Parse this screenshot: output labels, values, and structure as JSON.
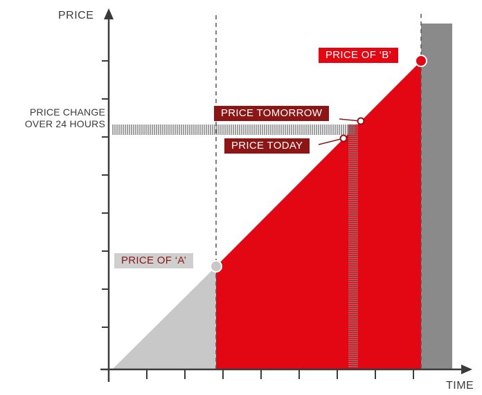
{
  "axes": {
    "y_label": "PRICE",
    "x_label": "TIME"
  },
  "side_label": {
    "line1": "PRICE CHANGE",
    "line2": "OVER 24 HOURS"
  },
  "tags": {
    "price_a": "PRICE OF ‘A’",
    "price_b": "PRICE OF ‘B’",
    "price_tomorrow": "PRICE TOMORROW",
    "price_today": "PRICE TODAY"
  },
  "colors": {
    "red": "#e30613",
    "dark_red": "#8c1515",
    "light_grey": "#c8c8c8",
    "dark_grey": "#8a8a8a",
    "axis": "#3a3a3a"
  }
}
